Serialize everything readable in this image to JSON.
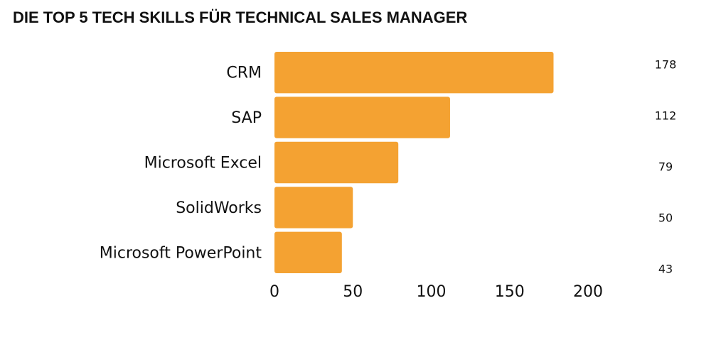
{
  "chart_data": {
    "type": "bar",
    "orientation": "horizontal",
    "title": "DIE TOP 5 TECH SKILLS FÜR TECHNICAL SALES MANAGER",
    "categories": [
      "CRM",
      "SAP",
      "Microsoft Excel",
      "SolidWorks",
      "Microsoft PowerPoint"
    ],
    "values": [
      178,
      112,
      79,
      50,
      43
    ],
    "color": "#f4a232",
    "xlim": [
      0,
      200
    ],
    "xticks": [
      0,
      50,
      100,
      150,
      200
    ],
    "grid": false
  }
}
